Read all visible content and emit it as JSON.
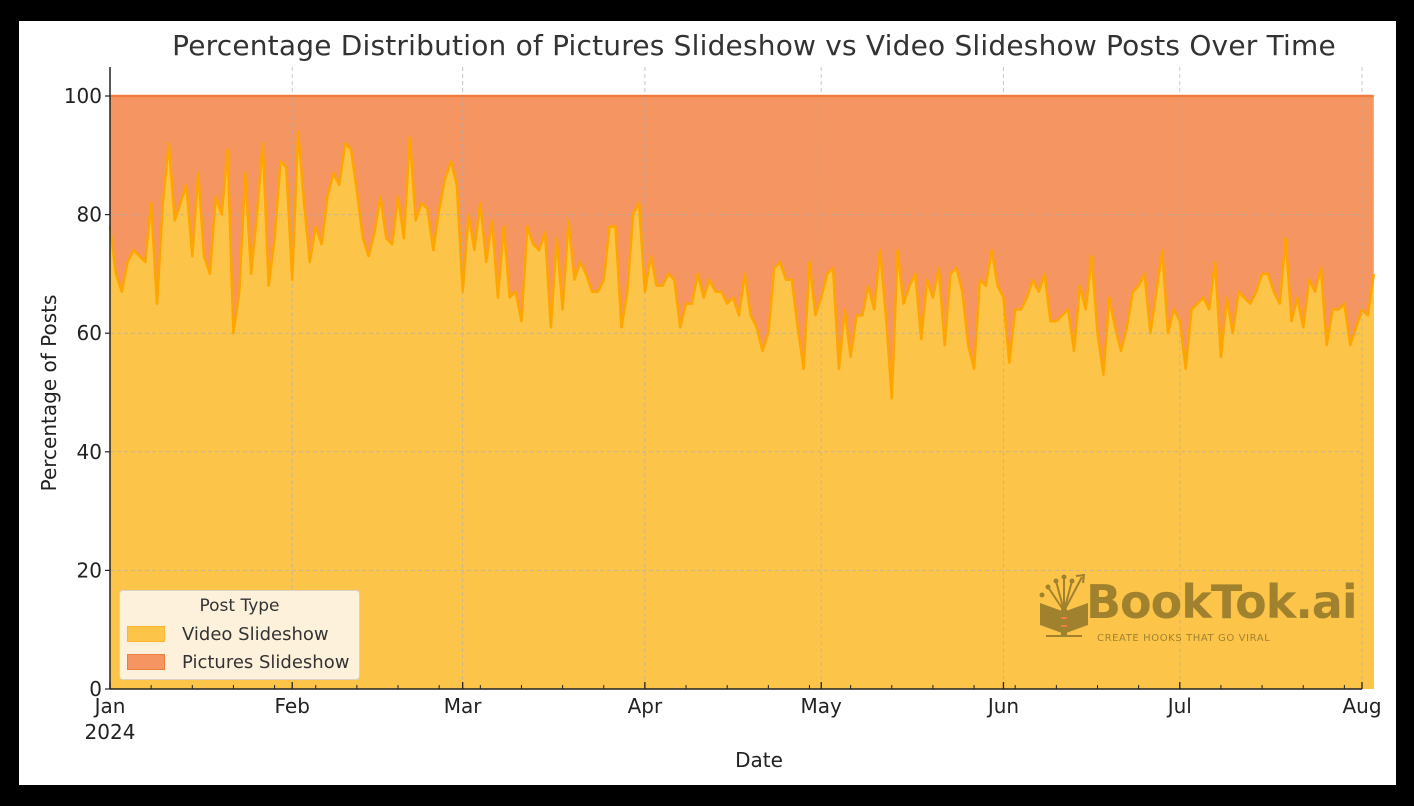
{
  "chart_data": {
    "type": "area",
    "stacked": true,
    "normalized_to": 100,
    "title": "Percentage Distribution of Pictures Slideshow vs Video Slideshow Posts Over Time",
    "xlabel": "Date",
    "ylabel": "Percentage of Posts",
    "ylim": [
      0,
      105
    ],
    "yticks": [
      0,
      20,
      40,
      60,
      80,
      100
    ],
    "xlim": [
      "2024-01-01",
      "2024-08-01"
    ],
    "xticks": [
      {
        "label": "Jan",
        "sublabel": "2024",
        "date": "2024-01-01"
      },
      {
        "label": "Feb",
        "date": "2024-02-01"
      },
      {
        "label": "Mar",
        "date": "2024-03-01"
      },
      {
        "label": "Apr",
        "date": "2024-04-01"
      },
      {
        "label": "May",
        "date": "2024-05-01"
      },
      {
        "label": "Jun",
        "date": "2024-06-01"
      },
      {
        "label": "Jul",
        "date": "2024-07-01"
      },
      {
        "label": "Aug",
        "date": "2024-08-01"
      }
    ],
    "grid": true,
    "legend": {
      "title": "Post Type",
      "position": "lower left",
      "entries": [
        "Video Slideshow",
        "Pictures Slideshow"
      ]
    },
    "x_start": "2024-01-01",
    "x_step_days": 1,
    "series": [
      {
        "name": "Video Slideshow",
        "color": "#fdc44a",
        "line_color": "#ffa500",
        "values": [
          78,
          70,
          67,
          72,
          74,
          73,
          72,
          82,
          65,
          82,
          92,
          79,
          82,
          85,
          73,
          87,
          73,
          70,
          83,
          80,
          91,
          60,
          67,
          87,
          70,
          80,
          92,
          68,
          76,
          89,
          88,
          69,
          94,
          82,
          72,
          78,
          75,
          83,
          87,
          85,
          92,
          91,
          84,
          76,
          73,
          77,
          83,
          76,
          75,
          83,
          76,
          93,
          79,
          82,
          81,
          74,
          81,
          86,
          89,
          85,
          67,
          80,
          74,
          82,
          72,
          79,
          66,
          78,
          66,
          67,
          62,
          78,
          75,
          74,
          77,
          61,
          76,
          64,
          79,
          69,
          72,
          70,
          67,
          67,
          69,
          78,
          78,
          61,
          67,
          80,
          82,
          67,
          73,
          68,
          68,
          70,
          69,
          61,
          65,
          65,
          70,
          66,
          69,
          67,
          67,
          65,
          66,
          63,
          70,
          63,
          61,
          57,
          60,
          71,
          72,
          69,
          69,
          61,
          54,
          72,
          63,
          66,
          70,
          71,
          54,
          64,
          56,
          63,
          63,
          68,
          64,
          74,
          63,
          49,
          74,
          65,
          68,
          70,
          59,
          69,
          66,
          71,
          58,
          70,
          71,
          67,
          58,
          54,
          69,
          68,
          74,
          68,
          66,
          55,
          64,
          64,
          66,
          69,
          67,
          70,
          62,
          62,
          63,
          64,
          57,
          68,
          64,
          73,
          60,
          53,
          66,
          61,
          57,
          61,
          67,
          68,
          70,
          60,
          67,
          74,
          60,
          64,
          62,
          54,
          64,
          65,
          66,
          64,
          72,
          56,
          66,
          60,
          67,
          66,
          65,
          67,
          70,
          70,
          67,
          65,
          76,
          62,
          66,
          61,
          69,
          67,
          71,
          58,
          64,
          64,
          65,
          58,
          61,
          64,
          63,
          70
        ]
      },
      {
        "name": "Pictures Slideshow",
        "color": "#f59562",
        "line_color": "#f07c3e",
        "values": "100 - Video Slideshow"
      }
    ]
  },
  "legend": {
    "title": "Post Type",
    "items": [
      {
        "label": "Video Slideshow",
        "color": "#fdc44a",
        "border": "#ffb52e"
      },
      {
        "label": "Pictures Slideshow",
        "color": "#f59562",
        "border": "#f07c3e"
      }
    ]
  },
  "watermark": {
    "brand": "BookTok.ai",
    "tagline": "CREATE HOOKS THAT GO VIRAL",
    "color": "#a0822e"
  }
}
